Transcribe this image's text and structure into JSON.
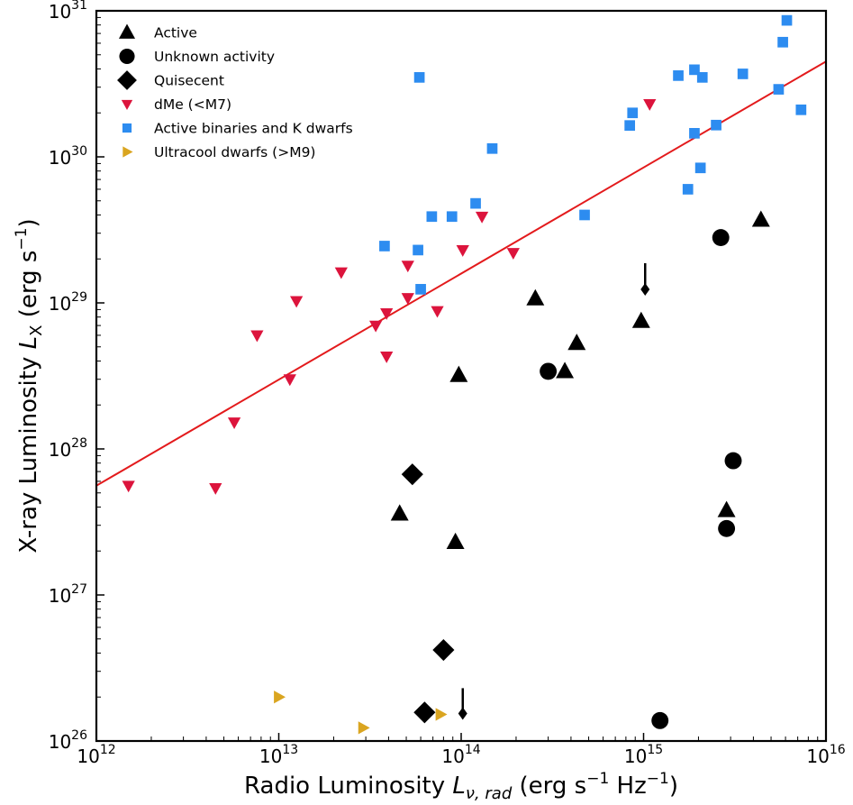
{
  "chart_data": {
    "type": "scatter",
    "xscale": "log",
    "yscale": "log",
    "xlim": [
      1000000000000.0,
      1e+16
    ],
    "ylim": [
      1e+26,
      1e+31
    ],
    "x_ticks": [
      {
        "base": "10",
        "exp": "12"
      },
      {
        "base": "10",
        "exp": "13"
      },
      {
        "base": "10",
        "exp": "14"
      },
      {
        "base": "10",
        "exp": "15"
      },
      {
        "base": "10",
        "exp": "16"
      }
    ],
    "y_ticks": [
      {
        "base": "10",
        "exp": "26"
      },
      {
        "base": "10",
        "exp": "27"
      },
      {
        "base": "10",
        "exp": "28"
      },
      {
        "base": "10",
        "exp": "29"
      },
      {
        "base": "10",
        "exp": "30"
      },
      {
        "base": "10",
        "exp": "31"
      }
    ],
    "xlabel": "Radio Luminosity  Lν, rad (erg s⁻¹ Hz⁻¹)",
    "ylabel": "X-ray Luminosity LX (erg s⁻¹)",
    "xlabel_parts": {
      "prefix": "Radio Luminosity  ",
      "var": "L",
      "sub": "ν, rad",
      "unit_open": " (erg s",
      "unit_exp1": "−1",
      "unit_mid": " Hz",
      "unit_exp2": "−1",
      "unit_close": ")"
    },
    "ylabel_parts": {
      "prefix": "X-ray Luminosity ",
      "var": "L",
      "sub": "X",
      "unit_open": " (erg s",
      "unit_exp": "−1",
      "unit_close": ")"
    },
    "grid": false,
    "legend_position": "top-left",
    "fit_line": {
      "color": "#e31a1c",
      "points": [
        [
          1000000000000.0,
          5.6e+27
        ],
        [
          1e+16,
          4.5e+30
        ]
      ]
    },
    "series": [
      {
        "name": "Active",
        "marker": "triangle-up",
        "color": "#000000",
        "size": "large",
        "points": [
          [
            255000000000000.0,
            1.07e+29
          ],
          [
            970000000000000.0,
            7.5e+28
          ],
          [
            430000000000000.0,
            5.3e+28
          ],
          [
            370000000000000.0,
            3.4e+28
          ],
          [
            97000000000000.0,
            3.2e+28
          ],
          [
            4400000000000000.0,
            3.7e+29
          ],
          [
            46000000000000.0,
            3.6e+27
          ],
          [
            93000000000000.0,
            2.3e+27
          ],
          [
            2850000000000000.0,
            3.8e+27
          ]
        ]
      },
      {
        "name": "Unknown activity",
        "marker": "circle",
        "color": "#000000",
        "size": "large",
        "points": [
          [
            2650000000000000.0,
            2.8e+29
          ],
          [
            300000000000000.0,
            3.4e+28
          ],
          [
            3100000000000000.0,
            8.3e+27
          ],
          [
            2850000000000000.0,
            2.85e+27
          ],
          [
            1230000000000000.0,
            1.38e+26
          ]
        ]
      },
      {
        "name": "Quisecent",
        "marker": "diamond",
        "color": "#000000",
        "size": "large",
        "points": [
          [
            54000000000000.0,
            6.7e+27
          ],
          [
            80000000000000.0,
            4.2e+26
          ],
          [
            63000000000000.0,
            1.57e+26
          ]
        ]
      },
      {
        "name": "dMe (<M7)",
        "marker": "triangle-down",
        "color": "#dc143c",
        "size": "small",
        "points": [
          [
            1500000000000.0,
            5.6e+27
          ],
          [
            4500000000000.0,
            5.4e+27
          ],
          [
            5700000000000.0,
            1.52e+28
          ],
          [
            7600000000000.0,
            6e+28
          ],
          [
            11500000000000.0,
            3e+28
          ],
          [
            12500000000000.0,
            1.03e+29
          ],
          [
            22000000000000.0,
            1.62e+29
          ],
          [
            34000000000000.0,
            7e+28
          ],
          [
            39000000000000.0,
            8.5e+28
          ],
          [
            39000000000000.0,
            4.3e+28
          ],
          [
            51000000000000.0,
            1.8e+29
          ],
          [
            51000000000000.0,
            1.08e+29
          ],
          [
            74000000000000.0,
            8.8e+28
          ],
          [
            102000000000000.0,
            2.3e+29
          ],
          [
            130000000000000.0,
            3.9e+29
          ],
          [
            193000000000000.0,
            2.2e+29
          ],
          [
            1080000000000000.0,
            2.3e+30
          ]
        ]
      },
      {
        "name": "Active binaries and K dwarfs",
        "marker": "square",
        "color": "#2d8cf0",
        "size": "small",
        "points": [
          [
            59000000000000.0,
            3.5e+30
          ],
          [
            148000000000000.0,
            1.14e+30
          ],
          [
            120000000000000.0,
            4.8e+29
          ],
          [
            69000000000000.0,
            3.9e+29
          ],
          [
            89000000000000.0,
            3.9e+29
          ],
          [
            475000000000000.0,
            4e+29
          ],
          [
            38000000000000.0,
            2.45e+29
          ],
          [
            58000000000000.0,
            2.3e+29
          ],
          [
            60000000000000.0,
            1.24e+29
          ],
          [
            840000000000000.0,
            1.64e+30
          ],
          [
            870000000000000.0,
            2e+30
          ],
          [
            1550000000000000.0,
            3.6e+30
          ],
          [
            1900000000000000.0,
            3.95e+30
          ],
          [
            2100000000000000.0,
            3.5e+30
          ],
          [
            3500000000000000.0,
            3.7e+30
          ],
          [
            5500000000000000.0,
            2.9e+30
          ],
          [
            5800000000000000.0,
            6.1e+30
          ],
          [
            6100000000000000.0,
            8.6e+30
          ],
          [
            7300000000000000.0,
            2.1e+30
          ],
          [
            1900000000000000.0,
            1.45e+30
          ],
          [
            2500000000000000.0,
            1.65e+30
          ],
          [
            2050000000000000.0,
            8.4e+29
          ],
          [
            1750000000000000.0,
            6e+29
          ]
        ]
      },
      {
        "name": "Ultracool dwarfs (>M9)",
        "marker": "triangle-right",
        "color": "#daa520",
        "size": "small",
        "points": [
          [
            10000000000000.0,
            2e+26
          ],
          [
            29000000000000.0,
            1.23e+26
          ],
          [
            77000000000000.0,
            1.52e+26
          ]
        ]
      }
    ],
    "upper_limits": [
      {
        "x": 1020000000000000.0,
        "y_from": 1.87e+29,
        "y_to": 1.22e+29
      },
      {
        "x": 102000000000000.0,
        "y_from": 2.3e+26,
        "y_to": 1.52e+26
      }
    ]
  }
}
